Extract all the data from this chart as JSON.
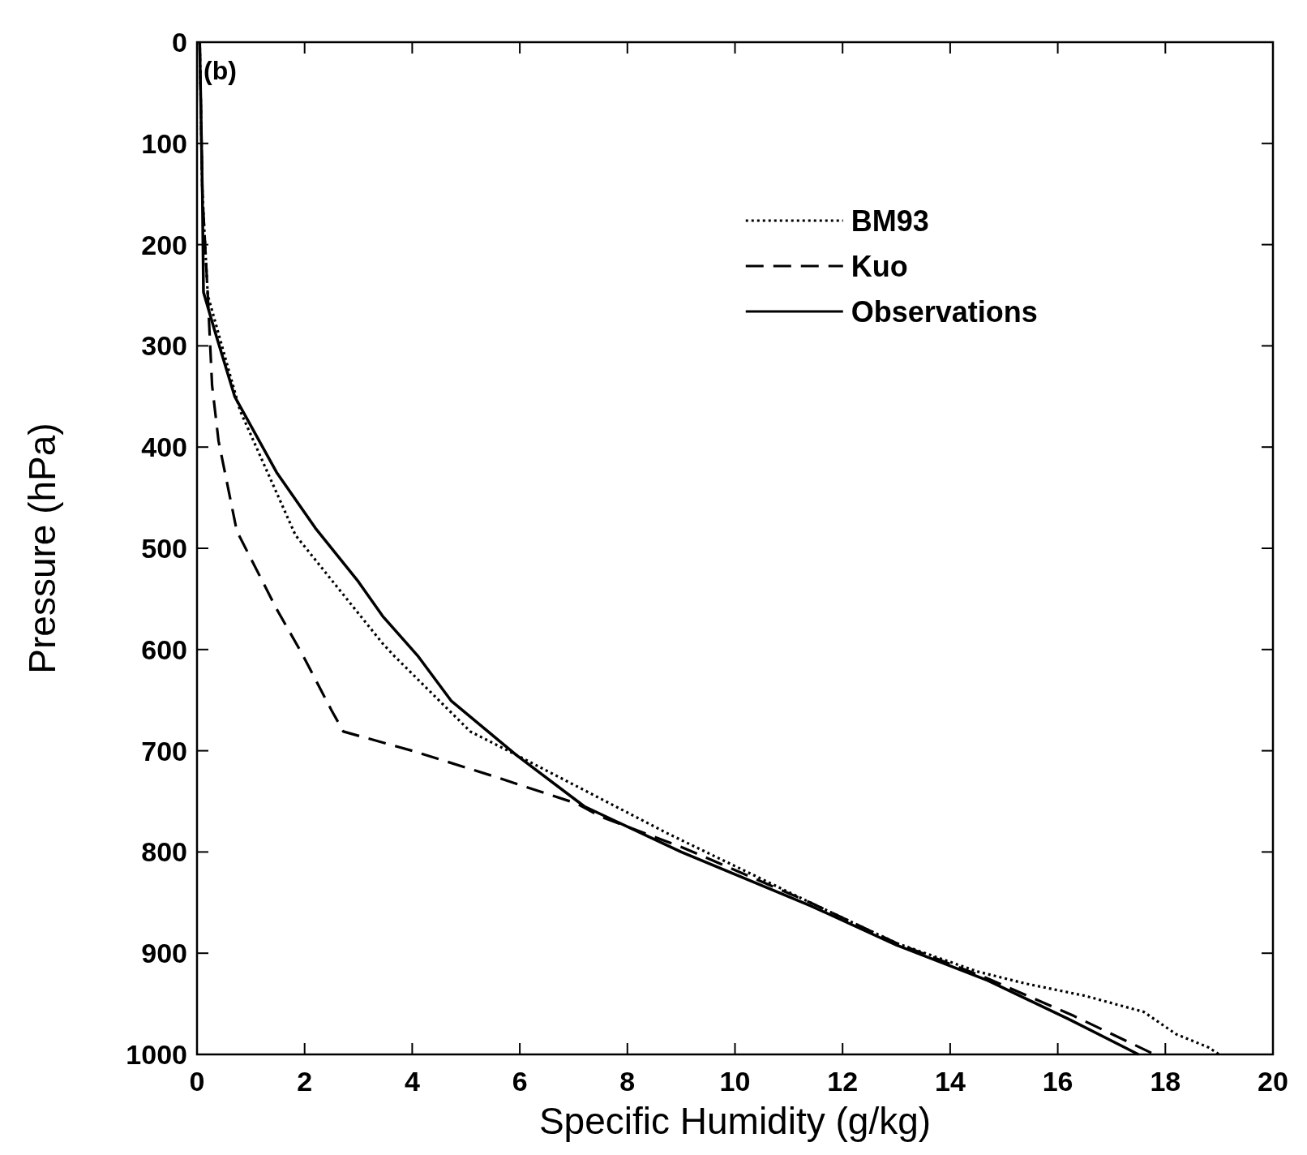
{
  "chart_data": {
    "type": "line",
    "xlabel": "Specific Humidity (g/kg)",
    "ylabel": "Pressure (hPa)",
    "annotations": [
      "(b)"
    ],
    "xlim": [
      0,
      20
    ],
    "xticks": [
      0,
      2,
      4,
      6,
      8,
      10,
      12,
      14,
      16,
      18,
      20
    ],
    "ylim": [
      1000,
      0
    ],
    "yticks": [
      0,
      100,
      200,
      300,
      400,
      500,
      600,
      700,
      800,
      900,
      1000
    ],
    "grid": false,
    "legend": "top right",
    "series": [
      {
        "name": "BM93",
        "color": "#000000",
        "line_style": "dotted",
        "x": [
          0.05,
          0.1,
          0.2,
          0.8,
          1.83,
          3.45,
          3.66,
          5.08,
          5.93,
          8.76,
          11.4,
          13.0,
          14.5,
          15.4,
          16.5,
          17.6,
          18.2,
          18.8,
          19.0
        ],
        "values": [
          0,
          150,
          250,
          364,
          487,
          594,
          606,
          681,
          704,
          782,
          850,
          890,
          918,
          930,
          942,
          958,
          980,
          993,
          1000
        ]
      },
      {
        "name": "Kuo",
        "color": "#000000",
        "line_style": "dashed",
        "x": [
          0.05,
          0.1,
          0.2,
          0.28,
          0.4,
          0.74,
          1.48,
          1.95,
          2.5,
          2.72,
          4.0,
          5.5,
          7.05,
          7.5,
          9.0,
          11.4,
          13.0,
          14.7,
          16.3,
          17.8
        ],
        "values": [
          0,
          150,
          250,
          339,
          394,
          483,
          560,
          604,
          660,
          681,
          700,
          725,
          752,
          765,
          795,
          850,
          890,
          925,
          962,
          1000
        ]
      },
      {
        "name": "Observations",
        "color": "#000000",
        "line_style": "solid",
        "x": [
          0.05,
          0.1,
          0.12,
          0.34,
          0.7,
          1.48,
          2.2,
          3.0,
          3.45,
          4.1,
          4.73,
          5.93,
          7.2,
          9.0,
          11.4,
          13.0,
          14.7,
          16.2,
          17.5
        ],
        "values": [
          0,
          150,
          247,
          287,
          350,
          425,
          480,
          533,
          567,
          606,
          651,
          704,
          755,
          800,
          853,
          892,
          927,
          965,
          1000
        ]
      }
    ]
  }
}
